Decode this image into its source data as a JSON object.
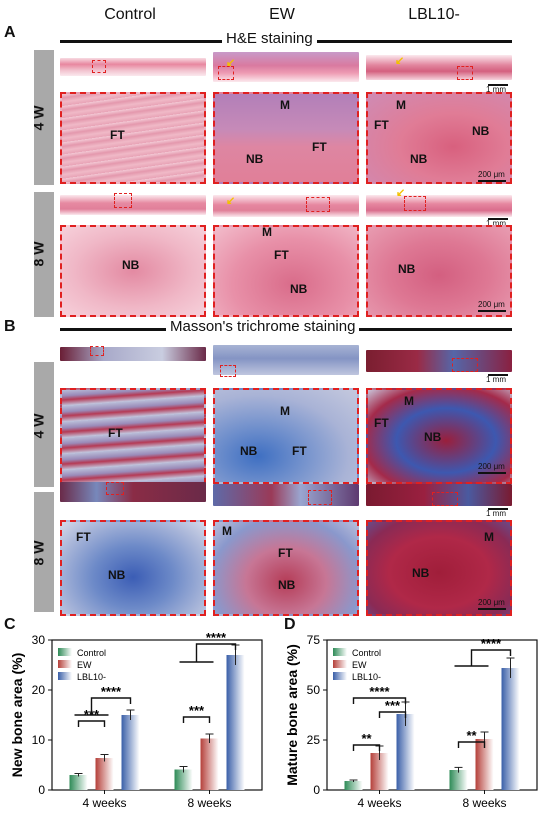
{
  "columns": [
    "Control",
    "EW",
    "LBL10-"
  ],
  "panel_a": {
    "letter": "A",
    "title": "H&E staining"
  },
  "panel_b": {
    "letter": "B",
    "title": "Masson's trichrome staining"
  },
  "rows": [
    "4 W",
    "8 W"
  ],
  "scale": {
    "mm": "1 mm",
    "um": "200 μm"
  },
  "he_labels": {
    "r4_c0": [
      "FT"
    ],
    "r4_c1": [
      "M",
      "NB",
      "FT"
    ],
    "r4_c2": [
      "M",
      "FT",
      "NB",
      "NB"
    ],
    "r8_c0": [
      "NB"
    ],
    "r8_c1": [
      "M",
      "FT",
      "NB"
    ],
    "r8_c2": [
      "NB"
    ]
  },
  "mt_labels": {
    "r4_c0": [
      "FT"
    ],
    "r4_c1": [
      "M",
      "NB",
      "FT"
    ],
    "r4_c2": [
      "M",
      "FT",
      "NB"
    ],
    "r8_c0": [
      "FT",
      "NB"
    ],
    "r8_c1": [
      "M",
      "FT",
      "NB"
    ],
    "r8_c2": [
      "M",
      "NB"
    ]
  },
  "colors": {
    "he_pink": "#e87f9a",
    "he_purple": "#a66ab0",
    "mt_blue": "#4a6fb5",
    "mt_red": "#b02840",
    "roi": "#e02020",
    "control": "#2e8b57",
    "ew": "#b5403a",
    "lbl": "#3a5fa8"
  },
  "chart_data": [
    {
      "type": "bar",
      "panel": "C",
      "ylabel": "New bone area (%)",
      "categories": [
        "4 weeks",
        "8 weeks"
      ],
      "legend_position": "top-left",
      "ylim": [
        0,
        30
      ],
      "yticks": [
        0,
        10,
        20,
        30
      ],
      "series": [
        {
          "name": "Control",
          "values": [
            3.0,
            4.1
          ],
          "errors": [
            0.3,
            0.6
          ]
        },
        {
          "name": "EW",
          "values": [
            6.4,
            10.3
          ],
          "errors": [
            0.7,
            0.9
          ]
        },
        {
          "name": "LBL10-",
          "values": [
            15.0,
            27.0
          ],
          "errors": [
            1.0,
            2.0
          ]
        }
      ],
      "significance": [
        "***",
        "****",
        "***",
        "****"
      ]
    },
    {
      "type": "bar",
      "panel": "D",
      "ylabel": "Mature bone area (%)",
      "categories": [
        "4 weeks",
        "8 weeks"
      ],
      "legend_position": "top-left",
      "ylim": [
        0,
        75
      ],
      "yticks": [
        0,
        25,
        50,
        75
      ],
      "series": [
        {
          "name": "Control",
          "values": [
            4.5,
            10.0
          ],
          "errors": [
            0.5,
            1.3
          ]
        },
        {
          "name": "EW",
          "values": [
            18.5,
            25.5
          ],
          "errors": [
            3.5,
            3.5
          ]
        },
        {
          "name": "LBL10-",
          "values": [
            38.0,
            61.0
          ],
          "errors": [
            6.0,
            5.0
          ]
        }
      ],
      "significance": [
        "**",
        "****",
        "***",
        "**",
        "****"
      ]
    }
  ]
}
